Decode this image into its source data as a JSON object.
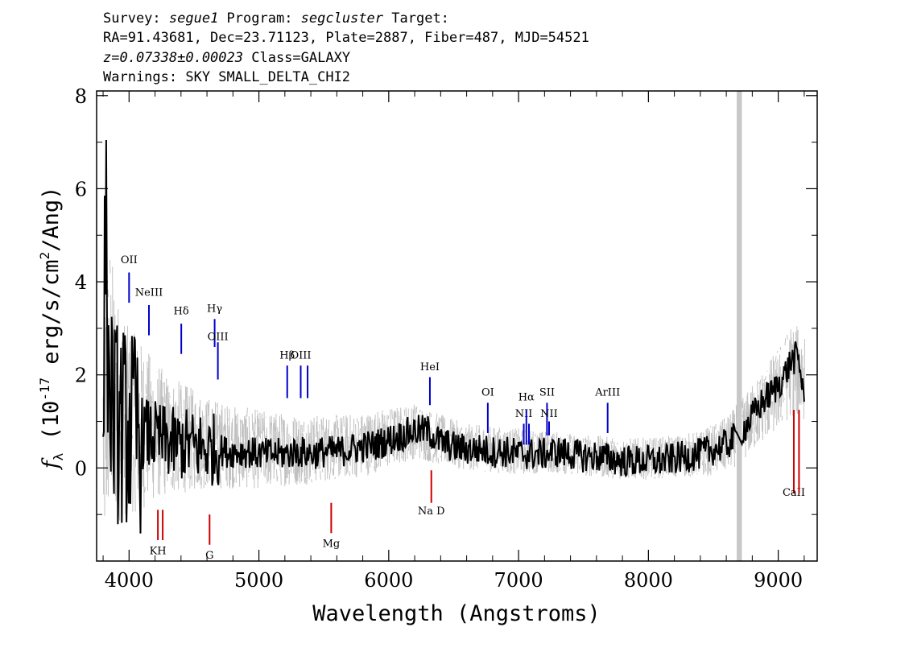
{
  "header": {
    "line1": {
      "survey_label": "Survey: ",
      "survey": "segue1",
      "program_label": " Program: ",
      "program": "segcluster",
      "target_label": " Target:"
    },
    "line2": "RA=91.43681, Dec=23.71123, Plate=2887, Fiber=487, MJD=54521",
    "line3": {
      "redshift": "z=0.07338±0.00023",
      "class": " Class=GALAXY"
    },
    "line4": "Warnings: SKY SMALL_DELTA_CHI2"
  },
  "chart_data": {
    "type": "line",
    "xlabel": "Wavelength (Angstroms)",
    "ylabel": "f_λ (10^-17 erg/s/cm^2/Ang)",
    "ylabel_parts": {
      "f": "f",
      "sub": "λ",
      "pre": " (10",
      "exp": "-17",
      "mid": " erg/s/cm",
      "exp2": "2",
      "post": "/Ang)"
    },
    "xlim": [
      3750,
      9300
    ],
    "ylim": [
      -2,
      8.1
    ],
    "x_ticks": [
      4000,
      5000,
      6000,
      7000,
      8000,
      9000
    ],
    "y_ticks": [
      0,
      2,
      4,
      6,
      8
    ],
    "masked_band": [
      8680,
      8720
    ],
    "colors": {
      "flux": "#000000",
      "error": "#c0c0c0",
      "emission": "#0000cc",
      "absorption": "#cc0000",
      "mask": "#c8c8c8"
    },
    "series": [
      {
        "style": "thick-black",
        "x": [
          3800,
          3820,
          3840,
          3860,
          3880,
          3900,
          3950,
          4000,
          4050,
          4100,
          4150,
          4200,
          4250,
          4300,
          4350,
          4400,
          4450,
          4500,
          4550,
          4600,
          4650,
          4700,
          4750,
          4800,
          4900,
          5000,
          5100,
          5200,
          5300,
          5400,
          5500,
          5600,
          5700,
          5800,
          5900,
          6000,
          6100,
          6200,
          6300,
          6400,
          6500,
          6600,
          6700,
          6800,
          6900,
          7000,
          7100,
          7200,
          7300,
          7400,
          7500,
          7600,
          7700,
          7800,
          7900,
          8000,
          8100,
          8200,
          8300,
          8400,
          8500,
          8600,
          8650,
          8750,
          8800,
          8850,
          8900,
          8950,
          9000,
          9050,
          9100,
          9150,
          9200
        ],
        "y": [
          0.5,
          6.0,
          2.0,
          1.5,
          1.2,
          1.0,
          0.9,
          0.85,
          0.8,
          0.75,
          0.7,
          0.65,
          0.6,
          0.55,
          0.5,
          0.5,
          0.5,
          0.45,
          0.45,
          0.4,
          0.4,
          0.4,
          0.35,
          0.35,
          0.35,
          0.3,
          0.3,
          0.3,
          0.35,
          0.3,
          0.35,
          0.35,
          0.4,
          0.45,
          0.5,
          0.6,
          0.7,
          0.8,
          0.8,
          0.55,
          0.45,
          0.4,
          0.4,
          0.35,
          0.35,
          0.3,
          0.3,
          0.3,
          0.35,
          0.3,
          0.25,
          0.25,
          0.2,
          0.15,
          0.15,
          0.15,
          0.15,
          0.2,
          0.25,
          0.3,
          0.4,
          0.5,
          0.6,
          0.9,
          1.1,
          1.3,
          1.5,
          1.6,
          1.8,
          2.0,
          2.3,
          2.4,
          1.6
        ]
      },
      {
        "style": "thin-gray",
        "x": [
          3800,
          3850,
          3900,
          3950,
          4000,
          4100,
          4200,
          4300,
          4400,
          4500,
          4600,
          4700,
          4800,
          5000,
          5200,
          5400,
          5600,
          5800,
          6000,
          6200,
          6400,
          6600,
          6800,
          7000,
          7200,
          7400,
          7600,
          7800,
          8000,
          8200,
          8400,
          8600,
          8750,
          8900,
          9000,
          9100,
          9200
        ],
        "y": [
          0.6,
          2.0,
          1.3,
          1.1,
          1.0,
          0.9,
          0.8,
          0.7,
          0.65,
          0.6,
          0.55,
          0.5,
          0.45,
          0.4,
          0.4,
          0.4,
          0.45,
          0.5,
          0.65,
          0.8,
          0.6,
          0.45,
          0.4,
          0.35,
          0.35,
          0.3,
          0.25,
          0.2,
          0.2,
          0.25,
          0.3,
          0.5,
          0.9,
          1.4,
          1.7,
          2.1,
          2.0
        ],
        "err": [
          3.0,
          3.0,
          2.5,
          2.2,
          2.0,
          1.8,
          1.5,
          1.3,
          1.2,
          1.1,
          1.0,
          0.95,
          0.9,
          0.85,
          0.8,
          0.75,
          0.7,
          0.7,
          0.65,
          0.6,
          0.55,
          0.5,
          0.5,
          0.5,
          0.45,
          0.45,
          0.45,
          0.45,
          0.45,
          0.45,
          0.5,
          0.6,
          0.7,
          0.8,
          0.9,
          1.0,
          1.0
        ]
      }
    ],
    "emission_lines": [
      {
        "label": "OII",
        "x": 4000,
        "y_top": 4.2,
        "y_bot": 3.55,
        "label_y": 4.4
      },
      {
        "label": "NeIII",
        "x": 4153,
        "y_top": 3.5,
        "y_bot": 2.85,
        "label_y": 3.7
      },
      {
        "label": "Hδ",
        "x": 4402,
        "y_top": 3.1,
        "y_bot": 2.45,
        "label_y": 3.3
      },
      {
        "label": "Hγ",
        "x": 4659,
        "y_top": 3.2,
        "y_bot": 2.6,
        "label_y": 3.35
      },
      {
        "label": "OIII",
        "x": 4684,
        "y_top": 2.7,
        "y_bot": 1.9,
        "label_y": 2.75
      },
      {
        "label": "Hβ",
        "x": 5218,
        "y_top": 2.2,
        "y_bot": 1.5,
        "label_y": 2.35
      },
      {
        "label": "OIII",
        "x": 5322,
        "y_top": 2.2,
        "y_bot": 1.5,
        "label_y": 2.35
      },
      {
        "label": "OIII",
        "x": 5375,
        "y_top": 2.2,
        "y_bot": 1.5,
        "label_y": ""
      },
      {
        "label": "HeI",
        "x": 6317,
        "y_top": 1.95,
        "y_bot": 1.35,
        "label_y": 2.1
      },
      {
        "label": "OI",
        "x": 6763,
        "y_top": 1.4,
        "y_bot": 0.75,
        "label_y": 1.55
      },
      {
        "label": "NII",
        "x": 7040,
        "y_top": 0.95,
        "y_bot": 0.5,
        "label_y": 1.1
      },
      {
        "label": "Hα",
        "x": 7060,
        "y_top": 1.25,
        "y_bot": 0.5,
        "label_y": 1.45
      },
      {
        "label": "NII",
        "x": 7080,
        "y_top": 0.95,
        "y_bot": 0.5,
        "label_y": ""
      },
      {
        "label": "SII",
        "x": 7219,
        "y_top": 1.4,
        "y_bot": 0.7,
        "label_y": 1.55
      },
      {
        "label": "NII",
        "x": 7235,
        "y_top": 1.0,
        "y_bot": 0.7,
        "label_y": 1.1
      },
      {
        "label": "ArIII",
        "x": 7686,
        "y_top": 1.4,
        "y_bot": 0.75,
        "label_y": 1.55
      }
    ],
    "absorption_lines": [
      {
        "label": "KH",
        "x": 4222,
        "y_top": -0.9,
        "y_bot": -1.55,
        "label_y": -1.85
      },
      {
        "label": "",
        "x": 4259,
        "y_top": -0.9,
        "y_bot": -1.55,
        "label_y": ""
      },
      {
        "label": "G",
        "x": 4620,
        "y_top": -1.0,
        "y_bot": -1.65,
        "label_y": -1.95
      },
      {
        "label": "Mg",
        "x": 5557,
        "y_top": -0.75,
        "y_bot": -1.4,
        "label_y": -1.7
      },
      {
        "label": "Na D",
        "x": 6328,
        "y_top": -0.05,
        "y_bot": -0.75,
        "label_y": -1.0
      },
      {
        "label": "CaII",
        "x": 9120,
        "y_top": -0.55,
        "y_bot": 1.25,
        "label_y": -0.6
      },
      {
        "label": "",
        "x": 9160,
        "y_top": -0.55,
        "y_bot": 1.25,
        "label_y": ""
      }
    ]
  }
}
